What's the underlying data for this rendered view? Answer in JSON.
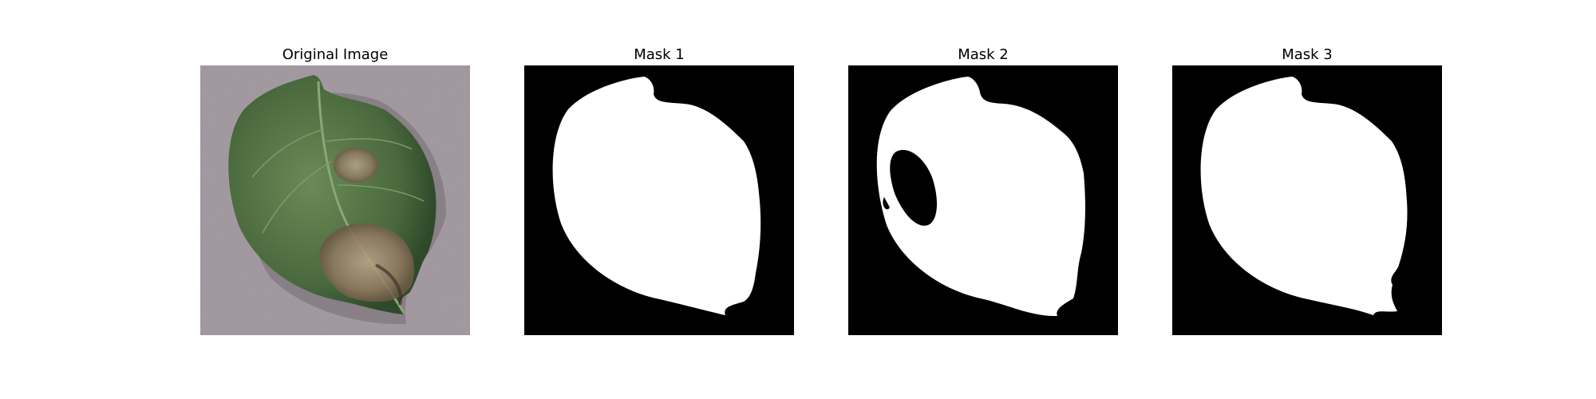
{
  "panels": [
    {
      "title": "Original Image",
      "kind": "photo"
    },
    {
      "title": "Mask 1",
      "kind": "mask"
    },
    {
      "title": "Mask 2",
      "kind": "mask-hole"
    },
    {
      "title": "Mask 3",
      "kind": "mask"
    }
  ],
  "colors": {
    "background": "#ffffff",
    "mask_bg": "#000000",
    "mask_fg": "#ffffff",
    "surface": "#a69da4",
    "leaf_dark": "#3f5b35",
    "leaf_mid": "#5d7a4e",
    "lesion": "#9c8a74"
  }
}
